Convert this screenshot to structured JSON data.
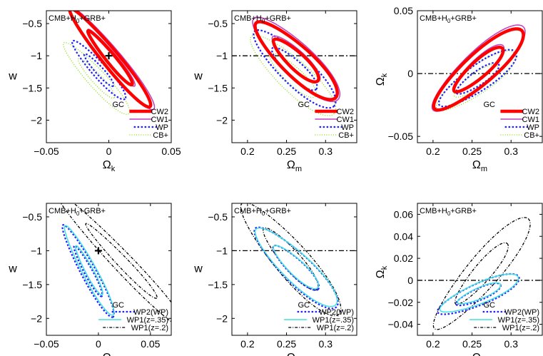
{
  "colors": {
    "CW2": "#ff0000",
    "CW1": "#c040c0",
    "WP": "#2020ff",
    "CBplus": "#80e000",
    "WP2": "#2020ff",
    "WP1_35": "#40e0e0",
    "WP1_2": "#000000"
  },
  "chart_data": [
    {
      "type": "contour",
      "title": "CMB+H₀+GRB+",
      "xlabel": "Ωk",
      "ylabel": "w",
      "xlim": [
        -0.05,
        0.05
      ],
      "ylim": [
        -2.35,
        -0.3
      ],
      "y_inverted": true,
      "xticks": [
        -0.05,
        0,
        0.05
      ],
      "xtick_labels": [
        "−0.05",
        "0",
        "0.05"
      ],
      "yticks": [
        -0.5,
        -1,
        -1.5,
        -2
      ],
      "ytick_labels": [
        "−0.5",
        "−1",
        "−1.5",
        "−2"
      ],
      "fiducial_point": {
        "x": 0,
        "y": -1
      },
      "legend_title": "GC",
      "legend": [
        {
          "label": "CW2",
          "key": "CW2",
          "style": "thick"
        },
        {
          "label": "CW1",
          "key": "CW1",
          "style": "solid"
        },
        {
          "label": "WP",
          "key": "WP",
          "style": "dash"
        },
        {
          "label": "CB+",
          "key": "CBplus",
          "style": "dot"
        }
      ],
      "series": [
        {
          "key": "CBplus",
          "style": "dot",
          "center": [
            -0.01,
            -1.35
          ],
          "a": [
            0.026,
            0.55
          ],
          "b": [
            0.01,
            0.2
          ],
          "angle": 50,
          "level": 2
        },
        {
          "key": "WP",
          "style": "dash",
          "center": [
            -0.008,
            -1.22
          ],
          "a": [
            0.021,
            0.45
          ],
          "b": [
            0.008,
            0.16
          ],
          "angle": 50,
          "level": 2
        },
        {
          "key": "CW1",
          "style": "solid",
          "center": [
            0.002,
            -1.03
          ],
          "a": [
            0.034,
            0.8
          ],
          "b": [
            0.01,
            0.21
          ],
          "angle": 50,
          "level": 2
        },
        {
          "key": "CW2",
          "style": "thick",
          "center": [
            0.001,
            -1.03
          ],
          "a": [
            0.032,
            0.76
          ],
          "b": [
            0.009,
            0.19
          ],
          "angle": 50,
          "level": 2
        }
      ]
    },
    {
      "type": "contour",
      "title": "CMB+H₀+GRB+",
      "xlabel": "Ωm",
      "ylabel": "w",
      "xlim": [
        0.18,
        0.34
      ],
      "ylim": [
        -2.35,
        -0.3
      ],
      "y_inverted": true,
      "xticks": [
        0.2,
        0.25,
        0.3
      ],
      "xtick_labels": [
        "0.2",
        "0.25",
        "0.3"
      ],
      "yticks": [
        -0.5,
        -1,
        -1.5,
        -2
      ],
      "ytick_labels": [
        "−0.5",
        "−1",
        "−1.5",
        "−2"
      ],
      "refline_y": -1,
      "legend_title": "GC",
      "legend": [
        {
          "label": "CW2",
          "key": "CW2",
          "style": "thick"
        },
        {
          "label": "CW1",
          "key": "CW1",
          "style": "solid"
        },
        {
          "label": "WP",
          "key": "WP",
          "style": "dash"
        },
        {
          "label": "CB+",
          "key": "CBplus",
          "style": "dot"
        }
      ],
      "series": [
        {
          "key": "CBplus",
          "style": "dot",
          "center": [
            0.258,
            -1.3
          ],
          "a": [
            0.053,
            0.6
          ],
          "b": [
            0.028,
            0.34
          ],
          "angle": 32,
          "level": 2
        },
        {
          "key": "WP",
          "style": "dash",
          "center": [
            0.26,
            -1.2
          ],
          "a": [
            0.051,
            0.58
          ],
          "b": [
            0.027,
            0.33
          ],
          "angle": 32,
          "level": 2
        },
        {
          "key": "CW1",
          "style": "solid",
          "center": [
            0.262,
            -1.05
          ],
          "a": [
            0.054,
            0.63
          ],
          "b": [
            0.029,
            0.36
          ],
          "angle": 32,
          "level": 2
        },
        {
          "key": "CW2",
          "style": "thick",
          "center": [
            0.262,
            -1.07
          ],
          "a": [
            0.051,
            0.58
          ],
          "b": [
            0.027,
            0.33
          ],
          "angle": 32,
          "level": 2
        }
      ]
    },
    {
      "type": "contour",
      "title": "CMB+H₀+GRB+",
      "xlabel": "Ωm",
      "ylabel": "Ωk",
      "xlim": [
        0.18,
        0.34
      ],
      "ylim": [
        -0.055,
        0.05
      ],
      "xticks": [
        0.2,
        0.25,
        0.3
      ],
      "xtick_labels": [
        "0.2",
        "0.25",
        "0.3"
      ],
      "yticks": [
        0.05,
        0,
        -0.05
      ],
      "ytick_labels": [
        "0.05",
        "0",
        "−0.05"
      ],
      "refline_y": 0,
      "legend_title": "GC",
      "legend": [
        {
          "label": "CW2",
          "key": "CW2",
          "style": "thick"
        },
        {
          "label": "CW1",
          "key": "CW1",
          "style": "solid"
        },
        {
          "label": "WP",
          "key": "WP",
          "style": "dash"
        },
        {
          "label": "CB+",
          "key": "CBplus",
          "style": "dot"
        }
      ],
      "series": [
        {
          "key": "CBplus",
          "style": "dot",
          "center": [
            0.255,
            -0.006
          ],
          "a": [
            0.05,
            0.022
          ],
          "b": [
            0.028,
            0.012
          ],
          "angle": 38,
          "level": 2
        },
        {
          "key": "WP",
          "style": "dash",
          "center": [
            0.257,
            -0.004
          ],
          "a": [
            0.049,
            0.021
          ],
          "b": [
            0.027,
            0.011
          ],
          "angle": 38,
          "level": 2
        },
        {
          "key": "CW1",
          "style": "solid",
          "center": [
            0.258,
            0.004
          ],
          "a": [
            0.058,
            0.033
          ],
          "b": [
            0.032,
            0.016
          ],
          "angle": 38,
          "level": 2
        },
        {
          "key": "CW2",
          "style": "thick",
          "center": [
            0.258,
            0.003
          ],
          "a": [
            0.056,
            0.031
          ],
          "b": [
            0.03,
            0.015
          ],
          "angle": 38,
          "level": 2
        }
      ]
    },
    {
      "type": "contour",
      "title": "CMB+H₀+GRB+",
      "xlabel": "Ωk",
      "ylabel": "w",
      "xlim": [
        -0.05,
        0.07
      ],
      "ylim": [
        -2.25,
        -0.3
      ],
      "y_inverted": true,
      "xticks": [
        -0.05,
        0,
        0.05
      ],
      "xtick_labels": [
        "−0.05",
        "0",
        "0.05"
      ],
      "yticks": [
        -0.5,
        -1,
        -1.5,
        -2
      ],
      "ytick_labels": [
        "−0.5",
        "−1",
        "−1.5",
        "−2"
      ],
      "fiducial_point": {
        "x": 0,
        "y": -1
      },
      "legend_title": "GC",
      "legend": [
        {
          "label": "WP2(WP)",
          "key": "WP2",
          "style": "dash"
        },
        {
          "label": "WP1(z=.35)",
          "key": "WP1_35",
          "style": "solid"
        },
        {
          "label": "WP1(z=.2)",
          "key": "WP1_2",
          "style": "dashdot"
        }
      ],
      "series": [
        {
          "key": "WP1_2",
          "style": "dashdot",
          "center": [
            0.022,
            -1.15
          ],
          "a": [
            0.062,
            1.0
          ],
          "b": [
            0.012,
            0.22
          ],
          "angle": 48,
          "level": 2
        },
        {
          "key": "WP2",
          "style": "dash",
          "center": [
            -0.01,
            -1.3
          ],
          "a": [
            0.024,
            0.68
          ],
          "b": [
            0.007,
            0.19
          ],
          "angle": 58,
          "level": 2
        },
        {
          "key": "WP1_35",
          "style": "solid",
          "center": [
            -0.009,
            -1.29
          ],
          "a": [
            0.023,
            0.66
          ],
          "b": [
            0.007,
            0.18
          ],
          "angle": 58,
          "level": 2
        }
      ]
    },
    {
      "type": "contour",
      "title": "CMB+H₀+GRB+",
      "xlabel": "Ωm",
      "ylabel": "w",
      "xlim": [
        0.18,
        0.34
      ],
      "ylim": [
        -2.25,
        -0.3
      ],
      "y_inverted": true,
      "xticks": [
        0.2,
        0.25,
        0.3
      ],
      "xtick_labels": [
        "0.2",
        "0.25",
        "0.3"
      ],
      "yticks": [
        -0.5,
        -1,
        -1.5,
        -2
      ],
      "ytick_labels": [
        "−0.5",
        "−1",
        "−1.5",
        "−2"
      ],
      "refline_y": -1,
      "legend_title": "GC",
      "legend": [
        {
          "label": "WP2(WP)",
          "key": "WP2",
          "style": "dash"
        },
        {
          "label": "WP1(z=.35)",
          "key": "WP1_35",
          "style": "solid"
        },
        {
          "label": "WP1(z=.2)",
          "key": "WP1_2",
          "style": "dashdot"
        }
      ],
      "series": [
        {
          "key": "WP1_2",
          "style": "dashdot",
          "center": [
            0.255,
            -1.12
          ],
          "a": [
            0.062,
            0.82
          ],
          "b": [
            0.03,
            0.36
          ],
          "angle": 30,
          "level": 2
        },
        {
          "key": "WP2",
          "style": "dash",
          "center": [
            0.262,
            -1.25
          ],
          "a": [
            0.052,
            0.58
          ],
          "b": [
            0.026,
            0.3
          ],
          "angle": 32,
          "level": 2
        },
        {
          "key": "WP1_35",
          "style": "solid",
          "center": [
            0.262,
            -1.24
          ],
          "a": [
            0.051,
            0.56
          ],
          "b": [
            0.026,
            0.29
          ],
          "angle": 32,
          "level": 2
        }
      ]
    },
    {
      "type": "contour",
      "title": "CMB+H₀+GRB+",
      "xlabel": "Ωm",
      "ylabel": "Ωk",
      "xlim": [
        0.18,
        0.34
      ],
      "ylim": [
        -0.05,
        0.07
      ],
      "xticks": [
        0.2,
        0.25,
        0.3
      ],
      "xtick_labels": [
        "0.2",
        "0.25",
        "0.3"
      ],
      "yticks": [
        0.06,
        0.04,
        0.02,
        0,
        -0.02,
        -0.04
      ],
      "ytick_labels": [
        "0.06",
        "0.04",
        "0.02",
        "0",
        "−0.02",
        "−0.04"
      ],
      "refline_y": 0,
      "legend_title": "GC",
      "legend": [
        {
          "label": "WP2(WP)",
          "key": "WP2",
          "style": "dash"
        },
        {
          "label": "WP1(z=.35)",
          "key": "WP1_35",
          "style": "solid"
        },
        {
          "label": "WP1(z=.2)",
          "key": "WP1_2",
          "style": "dashdot"
        }
      ],
      "series": [
        {
          "key": "WP1_2",
          "style": "dashdot",
          "center": [
            0.262,
            0.006
          ],
          "a": [
            0.06,
            0.05
          ],
          "b": [
            0.03,
            0.02
          ],
          "angle": 58,
          "level": 2
        },
        {
          "key": "WP2",
          "style": "dash",
          "center": [
            0.258,
            -0.013
          ],
          "a": [
            0.052,
            0.016
          ],
          "b": [
            0.025,
            0.008
          ],
          "angle": 22,
          "level": 2
        },
        {
          "key": "WP1_35",
          "style": "solid",
          "center": [
            0.259,
            -0.012
          ],
          "a": [
            0.05,
            0.015
          ],
          "b": [
            0.024,
            0.0075
          ],
          "angle": 22,
          "level": 2
        }
      ]
    }
  ]
}
